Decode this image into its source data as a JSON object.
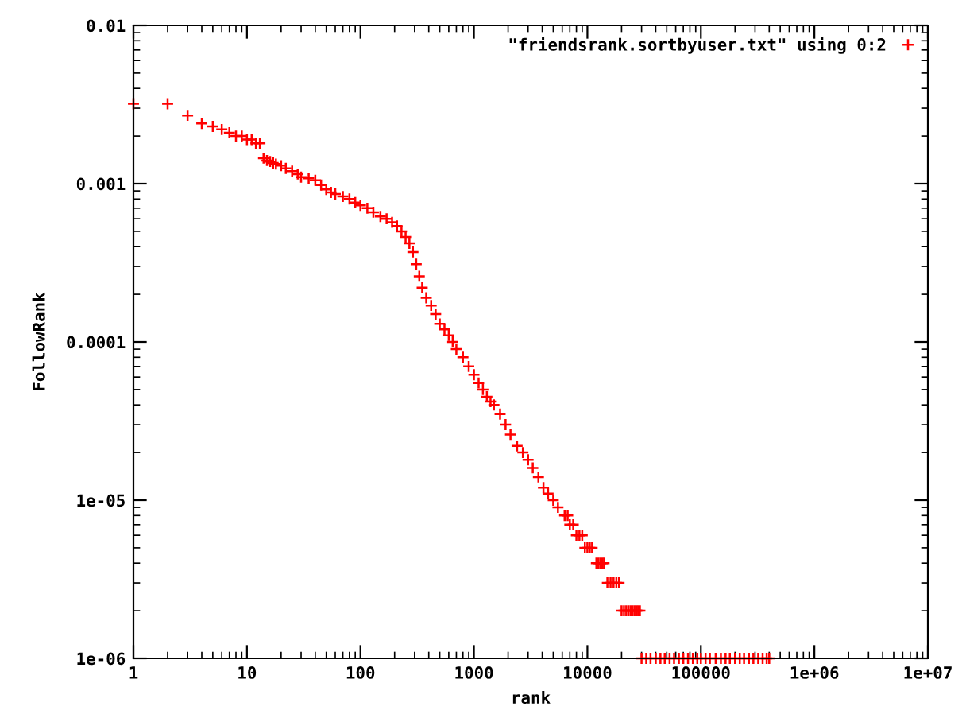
{
  "chart_data": {
    "type": "scatter",
    "xlabel": "rank",
    "ylabel": "FollowRank",
    "log": "xy",
    "grid": false,
    "legend": "top right",
    "marker": "cross",
    "xlim": [
      1,
      10000000
    ],
    "ylim": [
      1e-06,
      0.01
    ],
    "xticks": [
      1,
      10,
      100,
      1000,
      10000,
      100000,
      {
        "value": 1000000,
        "label": "1e+06"
      },
      {
        "value": 10000000,
        "label": "1e+07"
      }
    ],
    "yticks": [
      {
        "value": 1e-06,
        "label": "1e-06"
      },
      {
        "value": 1e-05,
        "label": "1e-05"
      },
      {
        "value": 0.0001,
        "label": "0.0001"
      },
      {
        "value": 0.001,
        "label": "0.001"
      },
      {
        "value": 0.01,
        "label": "0.01"
      }
    ],
    "series": [
      {
        "name": "\"friendsrank.sortbyuser.txt\" using 0:2",
        "color": "#ff0000",
        "x": [
          1,
          2,
          3,
          4,
          5,
          6,
          7,
          8,
          9,
          10,
          11,
          12,
          13,
          14,
          15,
          16,
          17,
          18,
          20,
          22,
          25,
          28,
          30,
          35,
          40,
          45,
          50,
          55,
          60,
          70,
          80,
          90,
          100,
          115,
          130,
          150,
          170,
          190,
          210,
          230,
          250,
          270,
          290,
          310,
          330,
          350,
          380,
          420,
          460,
          500,
          550,
          600,
          650,
          700,
          800,
          900,
          1000,
          1100,
          1200,
          1300,
          1400,
          1500,
          1700,
          1900,
          2100,
          2400,
          2700,
          3000,
          3300,
          3700,
          4100,
          4500,
          5000,
          5500,
          6300,
          6700,
          7000,
          7500,
          8000,
          8500,
          9000,
          9500,
          10000,
          10500,
          11000,
          12000,
          12500,
          13000,
          13500,
          14000,
          15000,
          16000,
          17000,
          18000,
          19000,
          20000,
          21000,
          22000,
          23000,
          24000,
          25000,
          26000,
          27000,
          28000,
          29000,
          30000,
          33000,
          36000,
          40000,
          44000,
          48000,
          53000,
          58000,
          64000,
          70000,
          77000,
          85000,
          93000,
          100000,
          110000,
          120000,
          135000,
          150000,
          165000,
          180000,
          200000,
          220000,
          240000,
          265000,
          290000,
          320000,
          350000,
          380000,
          400000
        ],
        "values": [
          0.0032,
          0.0032,
          0.0027,
          0.0024,
          0.0023,
          0.0022,
          0.0021,
          0.002,
          0.002,
          0.0019,
          0.0019,
          0.0018,
          0.0018,
          0.00145,
          0.0014,
          0.00138,
          0.00135,
          0.00133,
          0.0013,
          0.00125,
          0.0012,
          0.00115,
          0.0011,
          0.00108,
          0.00105,
          0.00098,
          0.00092,
          0.00088,
          0.00086,
          0.00083,
          0.0008,
          0.00076,
          0.00073,
          0.0007,
          0.00066,
          0.00062,
          0.0006,
          0.00057,
          0.00054,
          0.0005,
          0.00046,
          0.00042,
          0.00037,
          0.00031,
          0.00026,
          0.00022,
          0.00019,
          0.00017,
          0.00015,
          0.00013,
          0.00012,
          0.00011,
          0.0001,
          9e-05,
          8e-05,
          7e-05,
          6.2e-05,
          5.5e-05,
          5e-05,
          4.5e-05,
          4.2e-05,
          4e-05,
          3.5e-05,
          3e-05,
          2.6e-05,
          2.2e-05,
          2e-05,
          1.8e-05,
          1.6e-05,
          1.4e-05,
          1.2e-05,
          1.1e-05,
          1e-05,
          9e-06,
          8e-06,
          8e-06,
          7e-06,
          7e-06,
          6e-06,
          6e-06,
          6e-06,
          5e-06,
          5e-06,
          5e-06,
          5e-06,
          4e-06,
          4e-06,
          4e-06,
          4e-06,
          4e-06,
          3e-06,
          3e-06,
          3e-06,
          3e-06,
          3e-06,
          2e-06,
          2e-06,
          2e-06,
          2e-06,
          2e-06,
          2e-06,
          2e-06,
          2e-06,
          2e-06,
          2e-06,
          1e-06,
          1e-06,
          1e-06,
          1e-06,
          1e-06,
          1e-06,
          1e-06,
          1e-06,
          1e-06,
          1e-06,
          1e-06,
          1e-06,
          1e-06,
          1e-06,
          1e-06,
          1e-06,
          1e-06,
          1e-06,
          1e-06,
          1e-06,
          1e-06,
          1e-06,
          1e-06,
          1e-06,
          1e-06,
          1e-06,
          1e-06,
          1e-06,
          1e-06
        ]
      }
    ]
  }
}
